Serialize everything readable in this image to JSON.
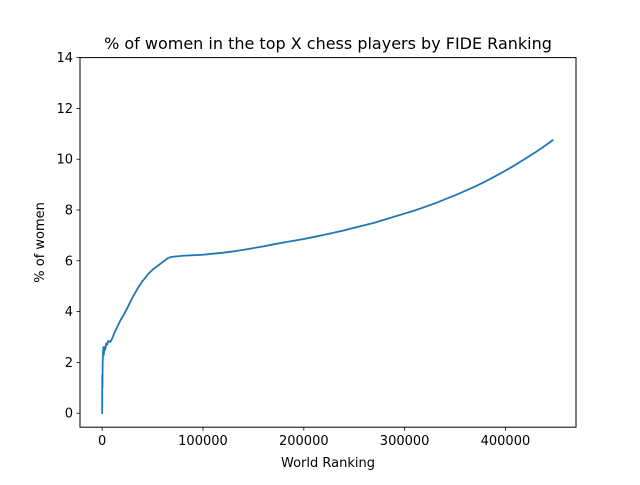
{
  "chart_data": {
    "type": "line",
    "title": "% of women in the top X chess players by FIDE Ranking",
    "xlabel": "World Ranking",
    "ylabel": "% of women",
    "xlim": [
      -22000,
      470000
    ],
    "ylim": [
      -0.55,
      14
    ],
    "xticks": [
      0,
      100000,
      200000,
      300000,
      400000
    ],
    "xtick_labels": [
      "0",
      "100000",
      "200000",
      "300000",
      "400000"
    ],
    "yticks": [
      0,
      2,
      4,
      6,
      8,
      10,
      12,
      14
    ],
    "ytick_labels": [
      "0",
      "2",
      "4",
      "6",
      "8",
      "10",
      "12",
      "14"
    ],
    "grid": false,
    "line_color": "#1f77b4",
    "series": [
      {
        "x": [
          1,
          100,
          300,
          500,
          800,
          1200,
          1600,
          2000,
          2500,
          3000,
          4000,
          5000,
          6000,
          8000,
          10000,
          12000,
          15000,
          18000,
          21000,
          25000,
          30000,
          35000,
          40000,
          45000,
          50000,
          55000,
          60000,
          65000,
          68000,
          70000,
          75000,
          80000,
          90000,
          100000,
          110000,
          120000,
          130000,
          140000,
          150000,
          160000,
          170000,
          180000,
          190000,
          200000,
          210000,
          220000,
          230000,
          240000,
          250000,
          260000,
          270000,
          280000,
          290000,
          300000,
          310000,
          320000,
          330000,
          340000,
          350000,
          360000,
          370000,
          380000,
          390000,
          400000,
          410000,
          420000,
          430000,
          440000,
          447000
        ],
        "y": [
          0.0,
          1.5,
          1.0,
          2.0,
          2.3,
          2.6,
          2.3,
          2.5,
          2.6,
          2.5,
          2.75,
          2.7,
          2.85,
          2.8,
          2.95,
          3.15,
          3.4,
          3.65,
          3.85,
          4.15,
          4.55,
          4.9,
          5.2,
          5.45,
          5.65,
          5.8,
          5.95,
          6.1,
          6.15,
          6.16,
          6.18,
          6.2,
          6.22,
          6.24,
          6.28,
          6.32,
          6.37,
          6.43,
          6.5,
          6.57,
          6.65,
          6.72,
          6.79,
          6.86,
          6.94,
          7.02,
          7.11,
          7.2,
          7.3,
          7.4,
          7.5,
          7.62,
          7.74,
          7.86,
          7.98,
          8.12,
          8.26,
          8.42,
          8.58,
          8.75,
          8.93,
          9.12,
          9.33,
          9.55,
          9.78,
          10.03,
          10.28,
          10.55,
          10.75
        ]
      }
    ]
  }
}
